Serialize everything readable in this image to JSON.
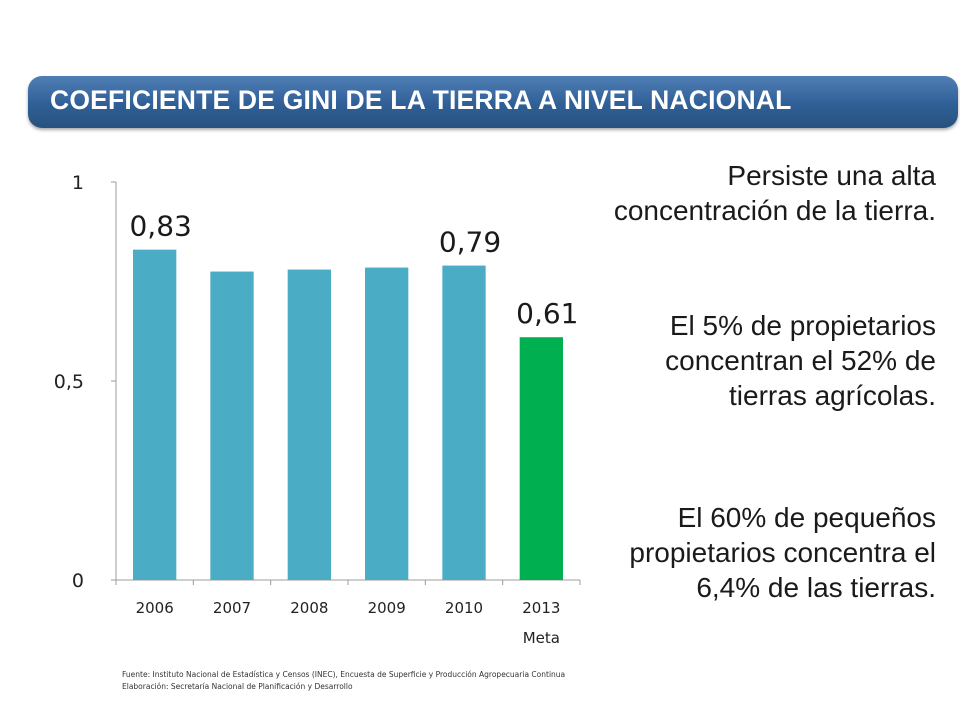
{
  "header": {
    "title": "COEFICIENTE DE GINI DE LA TIERRA A NIVEL NACIONAL"
  },
  "colors": {
    "banner": "#2f5f96",
    "bar_default": "#4bacc6",
    "bar_highlight": "#00b050",
    "axis": "#9c9c9c"
  },
  "chart_data": {
    "type": "bar",
    "categories": [
      "2006",
      "2007",
      "2008",
      "2009",
      "2010",
      "2013"
    ],
    "category_sublabels": [
      "",
      "",
      "",
      "",
      "",
      "Meta"
    ],
    "values": [
      0.83,
      0.775,
      0.78,
      0.785,
      0.79,
      0.61
    ],
    "bar_colors": [
      "#4bacc6",
      "#4bacc6",
      "#4bacc6",
      "#4bacc6",
      "#4bacc6",
      "#00b050"
    ],
    "data_labels": [
      {
        "index": 0,
        "text": "0,83"
      },
      {
        "index": 4,
        "text": "0,79"
      },
      {
        "index": 5,
        "text": "0,61"
      }
    ],
    "ylim": [
      0,
      1
    ],
    "yticks": [
      {
        "value": 0,
        "label": "0"
      },
      {
        "value": 0.5,
        "label": "0,5"
      },
      {
        "value": 1,
        "label": "1"
      }
    ],
    "grid": false,
    "title": "",
    "xlabel": "",
    "ylabel": ""
  },
  "notes": {
    "paragraphs": [
      "Persiste una alta concentración de la tierra.",
      "El 5% de propietarios concentran el 52% de tierras agrícolas.",
      "El 60% de pequeños propietarios concentra el 6,4% de las tierras."
    ]
  },
  "footer": {
    "source": "Fuente: Instituto Nacional de Estadística y Censos (INEC), Encuesta de Superficie y Producción Agropecuaria Continua",
    "elaboration": "Elaboración: Secretaría Nacional de Planificación y Desarrollo"
  }
}
